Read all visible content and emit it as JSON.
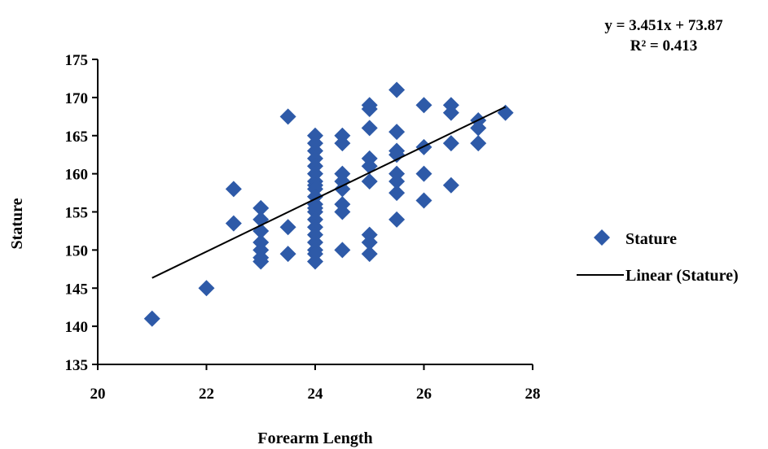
{
  "chart_data": {
    "type": "scatter",
    "xlabel": "Forearm Length",
    "ylabel": "Stature",
    "xlim": [
      20,
      28
    ],
    "ylim": [
      135,
      175
    ],
    "x_ticks": [
      "20",
      "22",
      "24",
      "26",
      "28"
    ],
    "y_ticks": [
      "135",
      "140",
      "145",
      "150",
      "155",
      "160",
      "165",
      "170",
      "175"
    ],
    "grid": false,
    "legend_position": "right",
    "marker_color": "#2e5aa8",
    "series": [
      {
        "name": "Stature",
        "marker": "diamond",
        "points": [
          [
            21,
            141
          ],
          [
            22,
            145
          ],
          [
            22.5,
            158
          ],
          [
            22.5,
            153.5
          ],
          [
            23,
            155.5
          ],
          [
            23,
            154
          ],
          [
            23,
            152.5
          ],
          [
            23,
            151
          ],
          [
            23,
            150
          ],
          [
            23,
            149
          ],
          [
            23,
            148.5
          ],
          [
            23.5,
            167.5
          ],
          [
            23.5,
            153
          ],
          [
            23.5,
            149.5
          ],
          [
            24,
            165
          ],
          [
            24,
            164
          ],
          [
            24,
            163
          ],
          [
            24,
            162
          ],
          [
            24,
            161
          ],
          [
            24,
            160
          ],
          [
            24,
            159
          ],
          [
            24,
            158.5
          ],
          [
            24,
            158
          ],
          [
            24,
            157
          ],
          [
            24,
            156
          ],
          [
            24,
            155.5
          ],
          [
            24,
            155
          ],
          [
            24,
            154
          ],
          [
            24,
            153
          ],
          [
            24,
            152
          ],
          [
            24,
            151
          ],
          [
            24,
            150
          ],
          [
            24,
            149.5
          ],
          [
            24,
            148.5
          ],
          [
            24.5,
            165
          ],
          [
            24.5,
            164
          ],
          [
            24.5,
            160
          ],
          [
            24.5,
            159
          ],
          [
            24.5,
            158
          ],
          [
            24.5,
            156
          ],
          [
            24.5,
            155
          ],
          [
            24.5,
            150
          ],
          [
            25,
            169
          ],
          [
            25,
            168.5
          ],
          [
            25,
            166
          ],
          [
            25,
            162
          ],
          [
            25,
            161
          ],
          [
            25,
            159
          ],
          [
            25,
            152
          ],
          [
            25,
            151
          ],
          [
            25,
            149.5
          ],
          [
            25.5,
            171
          ],
          [
            25.5,
            165.5
          ],
          [
            25.5,
            163
          ],
          [
            25.5,
            162.5
          ],
          [
            25.5,
            160
          ],
          [
            25.5,
            159
          ],
          [
            25.5,
            157.5
          ],
          [
            25.5,
            154
          ],
          [
            26,
            169
          ],
          [
            26,
            163.5
          ],
          [
            26,
            160
          ],
          [
            26,
            156.5
          ],
          [
            26.5,
            169
          ],
          [
            26.5,
            168
          ],
          [
            26.5,
            164
          ],
          [
            26.5,
            158.5
          ],
          [
            27,
            167
          ],
          [
            27,
            166
          ],
          [
            27,
            164
          ],
          [
            27.5,
            168
          ]
        ]
      },
      {
        "name": "Linear (Stature)",
        "type": "trendline",
        "slope": 3.451,
        "intercept": 73.87,
        "x_range": [
          21,
          27.5
        ]
      }
    ],
    "annotations": {
      "equation": "y = 3.451x + 73.87",
      "r_squared": "R² = 0.413"
    }
  }
}
